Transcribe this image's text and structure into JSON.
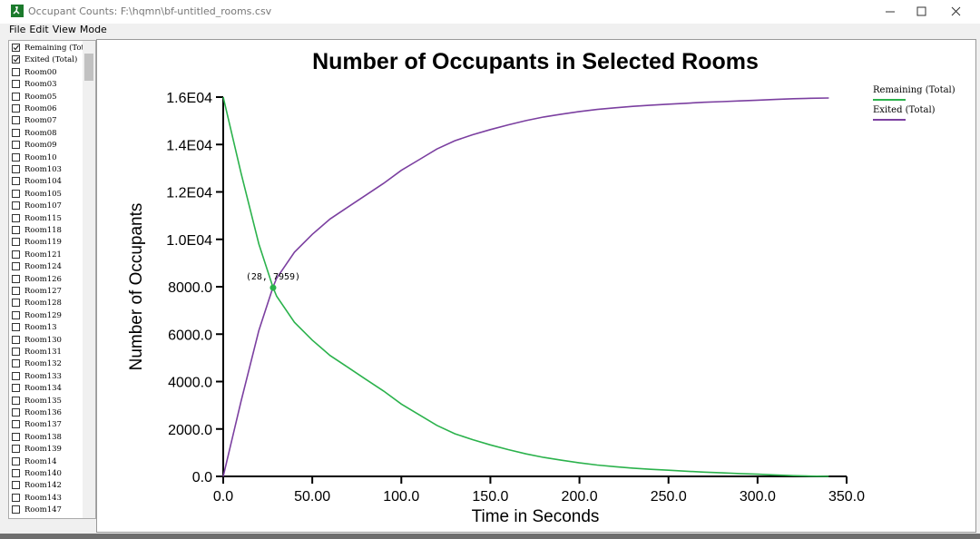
{
  "window": {
    "title": "Occupant Counts: F:\\hqmn\\bf-untitled_rooms.csv"
  },
  "menu": [
    "File",
    "Edit",
    "View",
    "Mode"
  ],
  "sidebar": {
    "items": [
      {
        "label": "Remaining (Total)",
        "checked": true
      },
      {
        "label": "Exited (Total)",
        "checked": true
      },
      {
        "label": "Room00",
        "checked": false
      },
      {
        "label": "Room03",
        "checked": false
      },
      {
        "label": "Room05",
        "checked": false
      },
      {
        "label": "Room06",
        "checked": false
      },
      {
        "label": "Room07",
        "checked": false
      },
      {
        "label": "Room08",
        "checked": false
      },
      {
        "label": "Room09",
        "checked": false
      },
      {
        "label": "Room10",
        "checked": false
      },
      {
        "label": "Room103",
        "checked": false
      },
      {
        "label": "Room104",
        "checked": false
      },
      {
        "label": "Room105",
        "checked": false
      },
      {
        "label": "Room107",
        "checked": false
      },
      {
        "label": "Room115",
        "checked": false
      },
      {
        "label": "Room118",
        "checked": false
      },
      {
        "label": "Room119",
        "checked": false
      },
      {
        "label": "Room121",
        "checked": false
      },
      {
        "label": "Room124",
        "checked": false
      },
      {
        "label": "Room126",
        "checked": false
      },
      {
        "label": "Room127",
        "checked": false
      },
      {
        "label": "Room128",
        "checked": false
      },
      {
        "label": "Room129",
        "checked": false
      },
      {
        "label": "Room13",
        "checked": false
      },
      {
        "label": "Room130",
        "checked": false
      },
      {
        "label": "Room131",
        "checked": false
      },
      {
        "label": "Room132",
        "checked": false
      },
      {
        "label": "Room133",
        "checked": false
      },
      {
        "label": "Room134",
        "checked": false
      },
      {
        "label": "Room135",
        "checked": false
      },
      {
        "label": "Room136",
        "checked": false
      },
      {
        "label": "Room137",
        "checked": false
      },
      {
        "label": "Room138",
        "checked": false
      },
      {
        "label": "Room139",
        "checked": false
      },
      {
        "label": "Room14",
        "checked": false
      },
      {
        "label": "Room140",
        "checked": false
      },
      {
        "label": "Room142",
        "checked": false
      },
      {
        "label": "Room143",
        "checked": false
      },
      {
        "label": "Room147",
        "checked": false
      }
    ]
  },
  "chart_data": {
    "type": "line",
    "title": "Number of Occupants in Selected Rooms",
    "x_label": "Time in Seconds",
    "y_label": "Number of Occupants",
    "xlim": [
      0,
      350
    ],
    "ylim": [
      0,
      16000
    ],
    "xticks": [
      {
        "value": 0,
        "label": "0.0"
      },
      {
        "value": 50,
        "label": "50.00"
      },
      {
        "value": 100,
        "label": "100.0"
      },
      {
        "value": 150,
        "label": "150.0"
      },
      {
        "value": 200,
        "label": "200.0"
      },
      {
        "value": 250,
        "label": "250.0"
      },
      {
        "value": 300,
        "label": "300.0"
      },
      {
        "value": 350,
        "label": "350.0"
      }
    ],
    "yticks": [
      {
        "value": 0,
        "label": "0.0"
      },
      {
        "value": 2000,
        "label": "2000.0"
      },
      {
        "value": 4000,
        "label": "4000.0"
      },
      {
        "value": 6000,
        "label": "6000.0"
      },
      {
        "value": 8000,
        "label": "8000.0"
      },
      {
        "value": 10000,
        "label": "1.0E04"
      },
      {
        "value": 12000,
        "label": "1.2E04"
      },
      {
        "value": 14000,
        "label": "1.4E04"
      },
      {
        "value": 16000,
        "label": "1.6E04"
      }
    ],
    "x": [
      0,
      10,
      20,
      28,
      30,
      40,
      50,
      60,
      70,
      80,
      90,
      100,
      110,
      120,
      130,
      140,
      150,
      160,
      170,
      180,
      190,
      200,
      210,
      220,
      230,
      240,
      250,
      260,
      270,
      280,
      290,
      300,
      310,
      320,
      330,
      340
    ],
    "series": [
      {
        "name": "Remaining (Total)",
        "color": "#2bb24c",
        "values": [
          16000,
          12800,
          9800,
          7959,
          7600,
          6500,
          5750,
          5100,
          4600,
          4100,
          3600,
          3050,
          2600,
          2150,
          1800,
          1550,
          1330,
          1130,
          950,
          800,
          680,
          570,
          480,
          410,
          350,
          300,
          260,
          220,
          180,
          150,
          120,
          90,
          60,
          30,
          10,
          0
        ]
      },
      {
        "name": "Exited (Total)",
        "color": "#7b3fa0",
        "values": [
          0,
          3160,
          6160,
          8001,
          8360,
          9460,
          10210,
          10860,
          11360,
          11860,
          12360,
          12910,
          13360,
          13810,
          14160,
          14410,
          14630,
          14830,
          15010,
          15160,
          15280,
          15390,
          15480,
          15550,
          15610,
          15660,
          15700,
          15740,
          15780,
          15810,
          15840,
          15870,
          15900,
          15930,
          15950,
          15960
        ]
      }
    ],
    "annotation": {
      "text": "(28, 7959)",
      "x": 28,
      "y": 7959,
      "color": "#2bb24c"
    }
  }
}
